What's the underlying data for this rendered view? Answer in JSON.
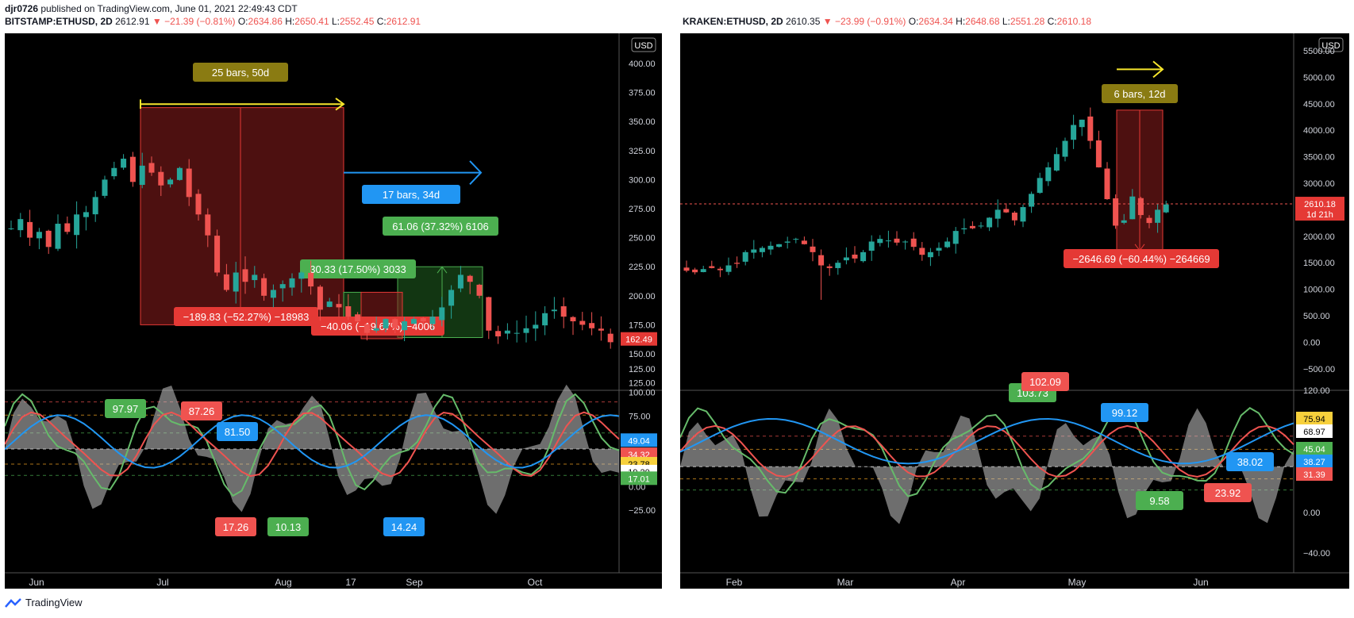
{
  "publisher": {
    "user": "djr0726",
    "text": "published on TradingView.com, June 01, 2021 22:49:43 CDT"
  },
  "footer": {
    "brand": "TradingView"
  },
  "charts": [
    {
      "symbol": "BITSTAMP:ETHUSD, 2D",
      "last": "2612.91",
      "change": "−21.39 (−0.81%)",
      "O": "2634.86",
      "H": "2650.41",
      "L": "2552.45",
      "C": "2612.91",
      "currency": "USD",
      "price_ticks": [
        "400.00",
        "375.00",
        "350.00",
        "325.00",
        "300.00",
        "275.00",
        "250.00",
        "225.00",
        "200.00",
        "175.00",
        "150.00",
        "125.00"
      ],
      "last_label": "162.49",
      "osc_ticks": [
        "125.00",
        "100.00",
        "75.00",
        "50.00",
        "25.00",
        "0.00",
        "−25.00"
      ],
      "osc_labels": [
        {
          "text": "49.04",
          "color": "#2196f3"
        },
        {
          "text": "34.32",
          "color": "#ef5350"
        },
        {
          "text": "23.78",
          "color": "#f7d03c"
        },
        {
          "text": "19.20",
          "color": "#ffffff"
        },
        {
          "text": "17.01",
          "color": "#4caf50"
        }
      ],
      "x_labels": [
        "Jun",
        "Jul",
        "Aug",
        "17",
        "Sep",
        "Oct"
      ],
      "annotations": [
        {
          "text": "25 bars, 50d",
          "color": "#8a7b12"
        },
        {
          "text": "17 bars, 34d",
          "color": "#2196f3"
        },
        {
          "text": "61.06 (37.32%) 6106",
          "color": "#4caf50"
        },
        {
          "text": "30.33 (17.50%) 3033",
          "color": "#4caf50"
        },
        {
          "text": "−189.83 (−52.27%) −18983",
          "color": "#e53935"
        },
        {
          "text": "−40.06 (−19.67%) −4006",
          "color": "#e53935"
        }
      ],
      "osc_annotations": [
        {
          "text": "97.97",
          "color": "#4caf50"
        },
        {
          "text": "87.26",
          "color": "#ef5350"
        },
        {
          "text": "81.50",
          "color": "#2196f3"
        },
        {
          "text": "17.26",
          "color": "#ef5350"
        },
        {
          "text": "10.13",
          "color": "#4caf50"
        },
        {
          "text": "14.24",
          "color": "#2196f3"
        }
      ]
    },
    {
      "symbol": "KRAKEN:ETHUSD, 2D",
      "last": "2610.35",
      "change": "−23.99 (−0.91%)",
      "O": "2634.34",
      "H": "2648.68",
      "L": "2551.28",
      "C": "2610.18",
      "currency": "USD",
      "price_ticks": [
        "5500.00",
        "5000.00",
        "4500.00",
        "4000.00",
        "3500.00",
        "3000.00",
        "2500.00",
        "2000.00",
        "1500.00",
        "1000.00",
        "500.00",
        "0.00",
        "−500.00"
      ],
      "last_label": "2610.18",
      "last_sub": "1d 21h",
      "osc_ticks": [
        "120.00",
        "80.00",
        "40.00",
        "0.00",
        "−40.00"
      ],
      "osc_labels": [
        {
          "text": "75.94",
          "color": "#f7d03c"
        },
        {
          "text": "68.97",
          "color": "#ffffff"
        },
        {
          "text": "45.04",
          "color": "#4caf50"
        },
        {
          "text": "38.27",
          "color": "#2196f3"
        },
        {
          "text": "31.39",
          "color": "#ef5350"
        }
      ],
      "x_labels": [
        "Feb",
        "Mar",
        "Apr",
        "May",
        "Jun"
      ],
      "annotations": [
        {
          "text": "6 bars, 12d",
          "color": "#8a7b12"
        },
        {
          "text": "−2646.69 (−60.44%) −264669",
          "color": "#e53935"
        }
      ],
      "osc_annotations": [
        {
          "text": "103.73",
          "color": "#4caf50"
        },
        {
          "text": "102.09",
          "color": "#ef5350"
        },
        {
          "text": "99.12",
          "color": "#2196f3"
        },
        {
          "text": "38.02",
          "color": "#2196f3"
        },
        {
          "text": "9.58",
          "color": "#4caf50"
        },
        {
          "text": "23.92",
          "color": "#ef5350"
        }
      ]
    }
  ],
  "chart_data": [
    {
      "type": "line",
      "title": "BITSTAMP:ETHUSD, 2D",
      "ylim": [
        115,
        415
      ],
      "osc_ylim": [
        -40,
        135
      ],
      "x": [
        "Jun",
        "Jul",
        "Aug",
        "17",
        "Sep",
        "Oct"
      ],
      "series": []
    },
    {
      "type": "line",
      "title": "KRAKEN:ETHUSD, 2D",
      "ylim": [
        -700,
        5700
      ],
      "osc_ylim": [
        -50,
        145
      ],
      "x": [
        "Feb",
        "Mar",
        "Apr",
        "May",
        "Jun"
      ],
      "series": []
    }
  ]
}
